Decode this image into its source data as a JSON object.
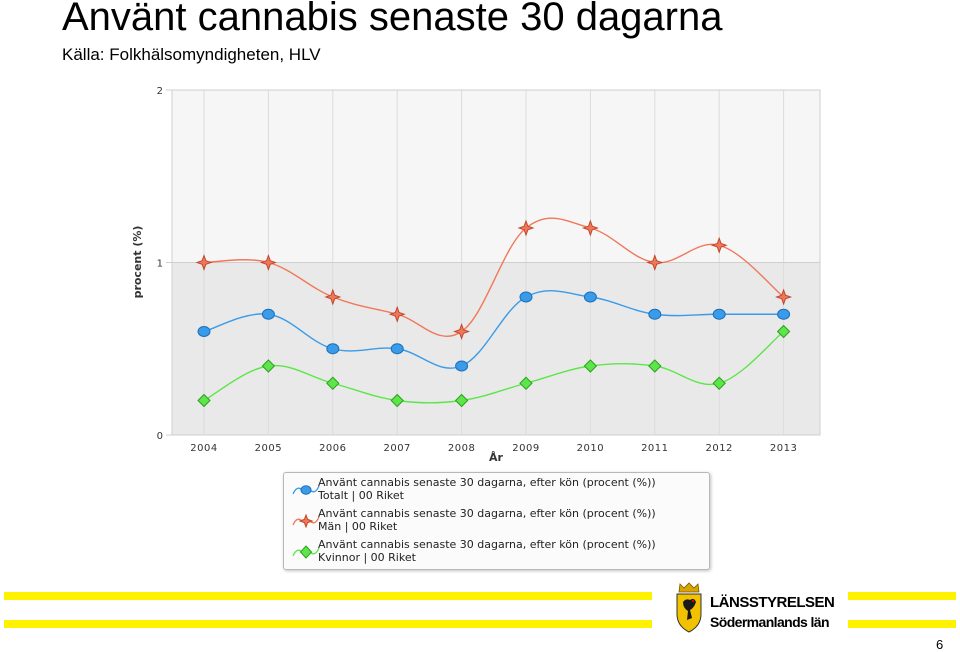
{
  "slide": {
    "title": "Använt cannabis senaste 30 dagarna",
    "subtitle": "Källa: Folkhälsomyndigheten, HLV",
    "page_number": "6"
  },
  "logo": {
    "line1": "LÄNSSTYRELSEN",
    "line2": "Södermanlands län"
  },
  "chart_data": {
    "type": "line",
    "x": [
      "2004",
      "2005",
      "2006",
      "2007",
      "2008",
      "2009",
      "2010",
      "2011",
      "2012",
      "2013"
    ],
    "xlabel": "År",
    "ylabel": "procent (%)",
    "ylim": [
      0,
      2
    ],
    "yticks": [
      "0",
      "1",
      "2"
    ],
    "grid": true,
    "legend_position": "bottom",
    "series": [
      {
        "label_line1": "Använt cannabis senaste 30 dagarna, efter kön (procent (%))",
        "label_line2": "Totalt  |  00 Riket",
        "color": "#3a9be8",
        "marker": "circle",
        "values": [
          0.6,
          0.7,
          0.5,
          0.5,
          0.4,
          0.8,
          0.8,
          0.7,
          0.7,
          0.7
        ]
      },
      {
        "label_line1": "Använt cannabis senaste 30 dagarna, efter kön (procent (%))",
        "label_line2": "Män  |  00 Riket",
        "color": "#f0785a",
        "marker": "star",
        "values": [
          1.0,
          1.0,
          0.8,
          0.7,
          0.6,
          1.2,
          1.2,
          1.0,
          1.1,
          0.8
        ]
      },
      {
        "label_line1": "Använt cannabis senaste 30 dagarna, efter kön (procent (%))",
        "label_line2": "Kvinnor  |  00 Riket",
        "color": "#5ce64a",
        "marker": "diamond",
        "values": [
          0.2,
          0.4,
          0.3,
          0.2,
          0.2,
          0.3,
          0.4,
          0.4,
          0.3,
          0.6
        ]
      }
    ]
  }
}
